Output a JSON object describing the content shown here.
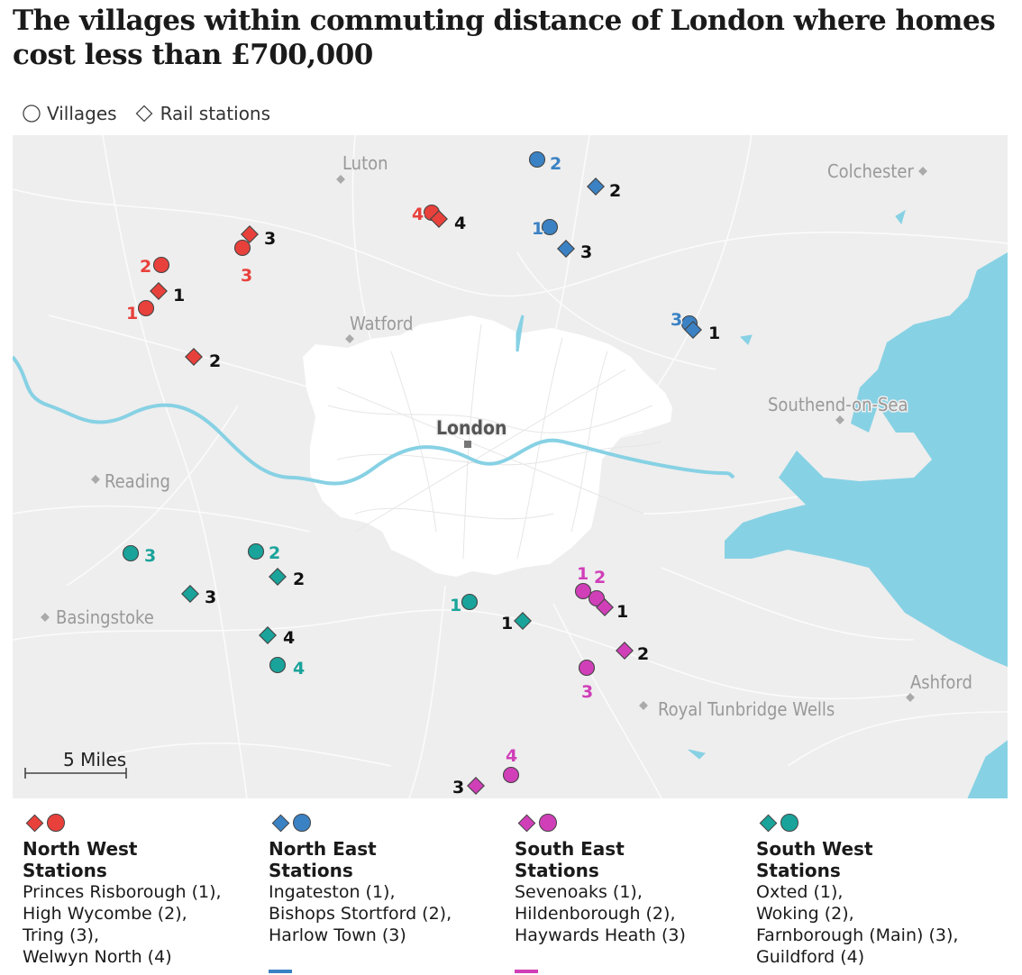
{
  "title": "The villages within commuting distance of London where homes cost less than £700,000",
  "legend": {
    "villages_label": "Villages",
    "stations_label": "Rail stations"
  },
  "colors": {
    "north_west": "#e8413c",
    "north_east": "#3b82c4",
    "south_east": "#d03fb8",
    "south_west": "#1aa39a",
    "water": "#87d1e4",
    "land": "#eeeeee",
    "london": "#ffffff"
  },
  "places": [
    {
      "name": "Luton"
    },
    {
      "name": "Colchester"
    },
    {
      "name": "Watford"
    },
    {
      "name": "Southend-on-Sea"
    },
    {
      "name": "London"
    },
    {
      "name": "Reading"
    },
    {
      "name": "Basingstoke"
    },
    {
      "name": "Royal Tunbridge Wells"
    },
    {
      "name": "Ashford"
    }
  ],
  "scale_label": "5 Miles",
  "markers": [
    {
      "region": "north_west",
      "kind": "village",
      "label": "1"
    },
    {
      "region": "north_west",
      "kind": "village",
      "label": "2"
    },
    {
      "region": "north_west",
      "kind": "village",
      "label": "3"
    },
    {
      "region": "north_west",
      "kind": "village",
      "label": "4"
    },
    {
      "region": "north_west",
      "kind": "station",
      "label": "1"
    },
    {
      "region": "north_west",
      "kind": "station",
      "label": "2"
    },
    {
      "region": "north_west",
      "kind": "station",
      "label": "3"
    },
    {
      "region": "north_west",
      "kind": "station",
      "label": "4"
    },
    {
      "region": "north_east",
      "kind": "village",
      "label": "1"
    },
    {
      "region": "north_east",
      "kind": "village",
      "label": "2"
    },
    {
      "region": "north_east",
      "kind": "village",
      "label": "3"
    },
    {
      "region": "north_east",
      "kind": "station",
      "label": "1"
    },
    {
      "region": "north_east",
      "kind": "station",
      "label": "2"
    },
    {
      "region": "north_east",
      "kind": "station",
      "label": "3"
    },
    {
      "region": "south_west",
      "kind": "village",
      "label": "1"
    },
    {
      "region": "south_west",
      "kind": "village",
      "label": "2"
    },
    {
      "region": "south_west",
      "kind": "village",
      "label": "3"
    },
    {
      "region": "south_west",
      "kind": "village",
      "label": "4"
    },
    {
      "region": "south_west",
      "kind": "station",
      "label": "1"
    },
    {
      "region": "south_west",
      "kind": "station",
      "label": "2"
    },
    {
      "region": "south_west",
      "kind": "station",
      "label": "3"
    },
    {
      "region": "south_west",
      "kind": "station",
      "label": "4"
    },
    {
      "region": "south_east",
      "kind": "village",
      "label": "1"
    },
    {
      "region": "south_east",
      "kind": "village",
      "label": "2"
    },
    {
      "region": "south_east",
      "kind": "village",
      "label": "3"
    },
    {
      "region": "south_east",
      "kind": "village",
      "label": "4"
    },
    {
      "region": "south_east",
      "kind": "station",
      "label": "1"
    },
    {
      "region": "south_east",
      "kind": "station",
      "label": "2"
    },
    {
      "region": "south_east",
      "kind": "station",
      "label": "3"
    }
  ],
  "key": {
    "north_west": {
      "heading": [
        "North West",
        "Stations"
      ],
      "lines": [
        "Princes Risborough (1),",
        "High Wycombe (2),",
        "Tring (3),",
        "Welwyn North (4)"
      ]
    },
    "north_east": {
      "heading": [
        "North East",
        "Stations"
      ],
      "lines": [
        "Ingateston (1),",
        "Bishops Stortford (2),",
        "Harlow Town (3)"
      ]
    },
    "south_east": {
      "heading": [
        "South East",
        "Stations"
      ],
      "lines": [
        "Sevenoaks (1),",
        "Hildenborough (2),",
        "Haywards Heath (3)"
      ]
    },
    "south_west": {
      "heading": [
        "South West",
        "Stations"
      ],
      "lines": [
        "Oxted (1),",
        "Woking (2),",
        "Farnborough (Main) (3),",
        "Guildford (4)"
      ]
    }
  }
}
